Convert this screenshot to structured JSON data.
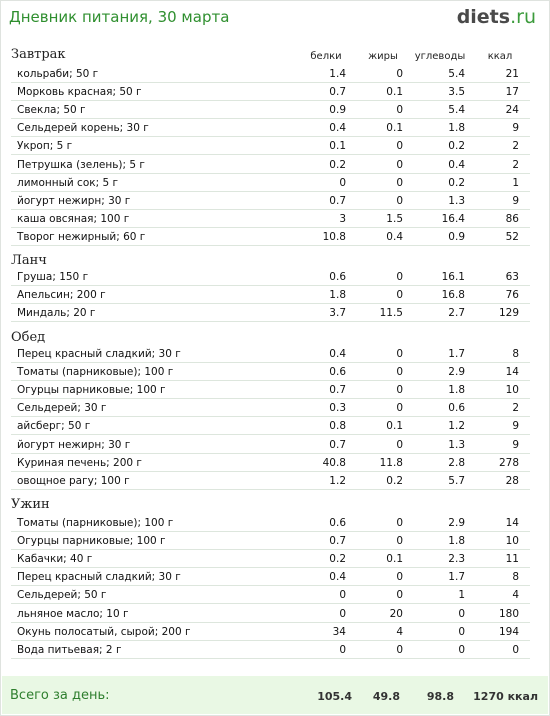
{
  "header": {
    "title": "Дневник питания, 30 марта",
    "logo_main": "diets",
    "logo_suffix": ".ru"
  },
  "columns": {
    "protein": "белки",
    "fat": "жиры",
    "carbs": "углеводы",
    "kcal": "ккал"
  },
  "sections": [
    {
      "title": "Завтрак",
      "rows": [
        {
          "name": "кольраби; 50 г",
          "p": "1.4",
          "f": "0",
          "c": "5.4",
          "k": "21"
        },
        {
          "name": "Морковь красная; 50 г",
          "p": "0.7",
          "f": "0.1",
          "c": "3.5",
          "k": "17"
        },
        {
          "name": "Свекла; 50 г",
          "p": "0.9",
          "f": "0",
          "c": "5.4",
          "k": "24"
        },
        {
          "name": "Сельдерей корень; 30 г",
          "p": "0.4",
          "f": "0.1",
          "c": "1.8",
          "k": "9"
        },
        {
          "name": "Укроп; 5 г",
          "p": "0.1",
          "f": "0",
          "c": "0.2",
          "k": "2"
        },
        {
          "name": "Петрушка (зелень); 5 г",
          "p": "0.2",
          "f": "0",
          "c": "0.4",
          "k": "2"
        },
        {
          "name": "лимонный сок; 5 г",
          "p": "0",
          "f": "0",
          "c": "0.2",
          "k": "1"
        },
        {
          "name": "йогурт нежирн; 30 г",
          "p": "0.7",
          "f": "0",
          "c": "1.3",
          "k": "9"
        },
        {
          "name": "каша овсяная; 100 г",
          "p": "3",
          "f": "1.5",
          "c": "16.4",
          "k": "86"
        },
        {
          "name": "Творог нежирный; 60 г",
          "p": "10.8",
          "f": "0.4",
          "c": "0.9",
          "k": "52"
        }
      ]
    },
    {
      "title": "Ланч",
      "rows": [
        {
          "name": "Груша; 150 г",
          "p": "0.6",
          "f": "0",
          "c": "16.1",
          "k": "63"
        },
        {
          "name": "Апельсин; 200 г",
          "p": "1.8",
          "f": "0",
          "c": "16.8",
          "k": "76"
        },
        {
          "name": "Миндаль; 20 г",
          "p": "3.7",
          "f": "11.5",
          "c": "2.7",
          "k": "129"
        }
      ]
    },
    {
      "title": "Обед",
      "rows": [
        {
          "name": "Перец красный сладкий; 30 г",
          "p": "0.4",
          "f": "0",
          "c": "1.7",
          "k": "8"
        },
        {
          "name": "Томаты (парниковые); 100 г",
          "p": "0.6",
          "f": "0",
          "c": "2.9",
          "k": "14"
        },
        {
          "name": "Огурцы парниковые; 100 г",
          "p": "0.7",
          "f": "0",
          "c": "1.8",
          "k": "10"
        },
        {
          "name": "Сельдерей; 30 г",
          "p": "0.3",
          "f": "0",
          "c": "0.6",
          "k": "2"
        },
        {
          "name": "айсберг; 50 г",
          "p": "0.8",
          "f": "0.1",
          "c": "1.2",
          "k": "9"
        },
        {
          "name": "йогурт нежирн; 30 г",
          "p": "0.7",
          "f": "0",
          "c": "1.3",
          "k": "9"
        },
        {
          "name": "Куриная печень; 200 г",
          "p": "40.8",
          "f": "11.8",
          "c": "2.8",
          "k": "278"
        },
        {
          "name": "овощное рагу; 100 г",
          "p": "1.2",
          "f": "0.2",
          "c": "5.7",
          "k": "28"
        }
      ]
    },
    {
      "title": "Ужин",
      "rows": [
        {
          "name": "Томаты (парниковые); 100 г",
          "p": "0.6",
          "f": "0",
          "c": "2.9",
          "k": "14"
        },
        {
          "name": "Огурцы парниковые; 100 г",
          "p": "0.7",
          "f": "0",
          "c": "1.8",
          "k": "10"
        },
        {
          "name": "Кабачки; 40 г",
          "p": "0.2",
          "f": "0.1",
          "c": "2.3",
          "k": "11"
        },
        {
          "name": "Перец красный сладкий; 30 г",
          "p": "0.4",
          "f": "0",
          "c": "1.7",
          "k": "8"
        },
        {
          "name": "Сельдерей; 50 г",
          "p": "0",
          "f": "0",
          "c": "1",
          "k": "4"
        },
        {
          "name": "льняное масло; 10 г",
          "p": "0",
          "f": "20",
          "c": "0",
          "k": "180"
        },
        {
          "name": "Окунь полосатый, сырой; 200 г",
          "p": "34",
          "f": "4",
          "c": "0",
          "k": "194"
        },
        {
          "name": "Вода питьевая; 2 г",
          "p": "0",
          "f": "0",
          "c": "0",
          "k": "0"
        }
      ]
    }
  ],
  "total": {
    "label": "Всего за день:",
    "protein": "105.4",
    "fat": "49.8",
    "carbs": "98.8",
    "kcal": "1270 ккал"
  },
  "colors": {
    "title": "#2f8f2f",
    "total_bg": "#e9f8e4",
    "row_border": "#dde6dd"
  }
}
